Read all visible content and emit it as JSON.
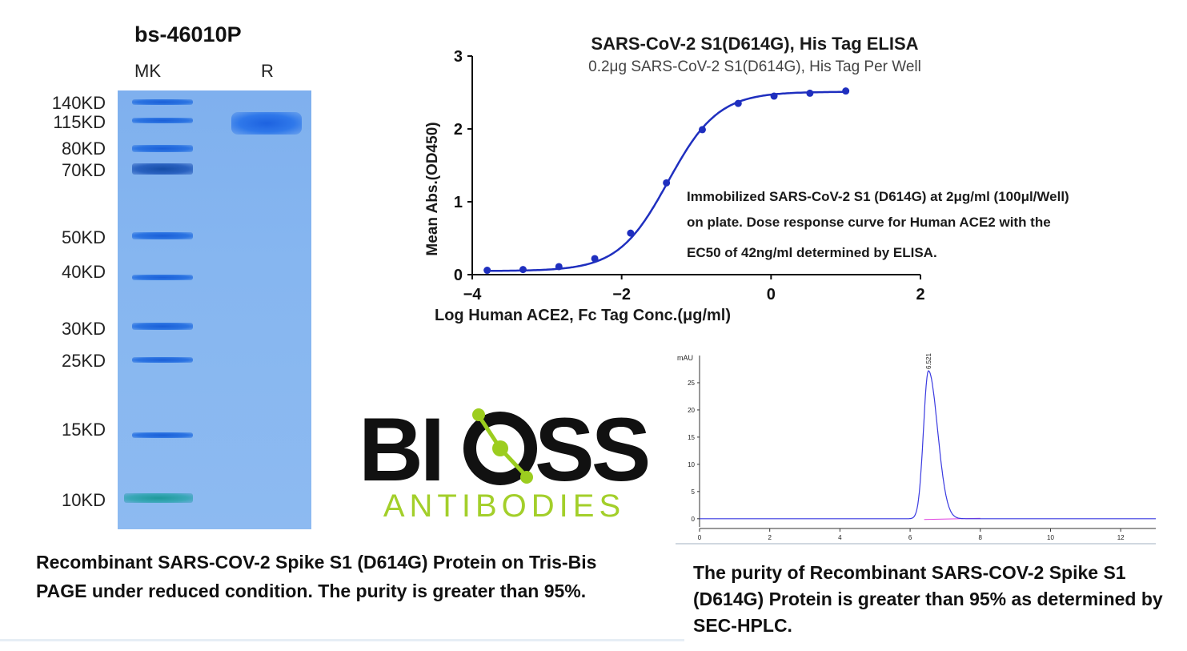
{
  "gel": {
    "title": "bs-46010P",
    "lane_labels": [
      "MK",
      "R"
    ],
    "markers": [
      "140KD",
      "115KD",
      "80KD",
      "70KD",
      "50KD",
      "40KD",
      "30KD",
      "25KD",
      "15KD",
      "10KD"
    ],
    "caption": "Recombinant  SARS-COV-2 Spike S1 (D614G) Protein on Tris-Bis PAGE under reduced condition. The purity is greater than 95%."
  },
  "logo": {
    "brand": "BIOSS",
    "sub": "ANTIBODIES"
  },
  "hplc": {
    "caption": "The purity of Recombinant  SARS-COV-2 Spike S1 (D614G) Protein is greater than 95% as determined by SEC-HPLC."
  },
  "chart_data": [
    {
      "type": "line",
      "title": "SARS-CoV-2 S1(D614G), His Tag ELISA",
      "subtitle": "0.2μg SARS-CoV-2 S1(D614G), His Tag Per Well",
      "xlabel": "Log Human ACE2, Fc Tag Conc.(μg/ml)",
      "ylabel": "Mean Abs.(OD450)",
      "xlim": [
        -4,
        2
      ],
      "ylim": [
        0,
        3
      ],
      "xticks": [
        -4,
        -2,
        0,
        2
      ],
      "yticks": [
        0,
        1,
        2,
        3
      ],
      "annotation": "Immobilized SARS-CoV-2 S1 (D614G) at 2μg/ml (100μl/Well) on plate. Dose response curve for Human ACE2 with the EC50 of 42ng/ml determined by ELISA.",
      "annotation_lines": [
        "Immobilized SARS-CoV-2 S1 (D614G) at 2μg/ml (100μl/Well)",
        "on plate. Dose response curve for Human ACE2 with the",
        "EC50 of 42ng/ml determined by ELISA."
      ],
      "series_color": "#1f2fbf",
      "x": [
        -3.8,
        -3.32,
        -2.84,
        -2.36,
        -1.88,
        -1.4,
        -0.92,
        -0.44,
        0.04,
        0.52,
        1.0
      ],
      "y": [
        0.06,
        0.07,
        0.11,
        0.22,
        0.57,
        1.26,
        1.99,
        2.35,
        2.45,
        2.49,
        2.52
      ],
      "fit": {
        "bottom": 0.05,
        "top": 2.51,
        "log_ec50": -1.377,
        "hill": 1.3
      }
    },
    {
      "type": "line",
      "title": "",
      "ylabel": "mAU",
      "xlim": [
        0,
        13
      ],
      "ylim": [
        -1.5,
        30
      ],
      "xticks": [
        0,
        2,
        4,
        6,
        8,
        10,
        12
      ],
      "yticks": [
        0,
        5,
        10,
        15,
        20,
        25
      ],
      "peak_label": "6.521",
      "series": [
        {
          "name": "",
          "color": "#3a3ae0",
          "peak_x": 6.521,
          "peak_height": 27.2,
          "baseline": 0
        },
        {
          "name": "",
          "color": "#e040e0",
          "baseline": 0
        }
      ]
    }
  ]
}
